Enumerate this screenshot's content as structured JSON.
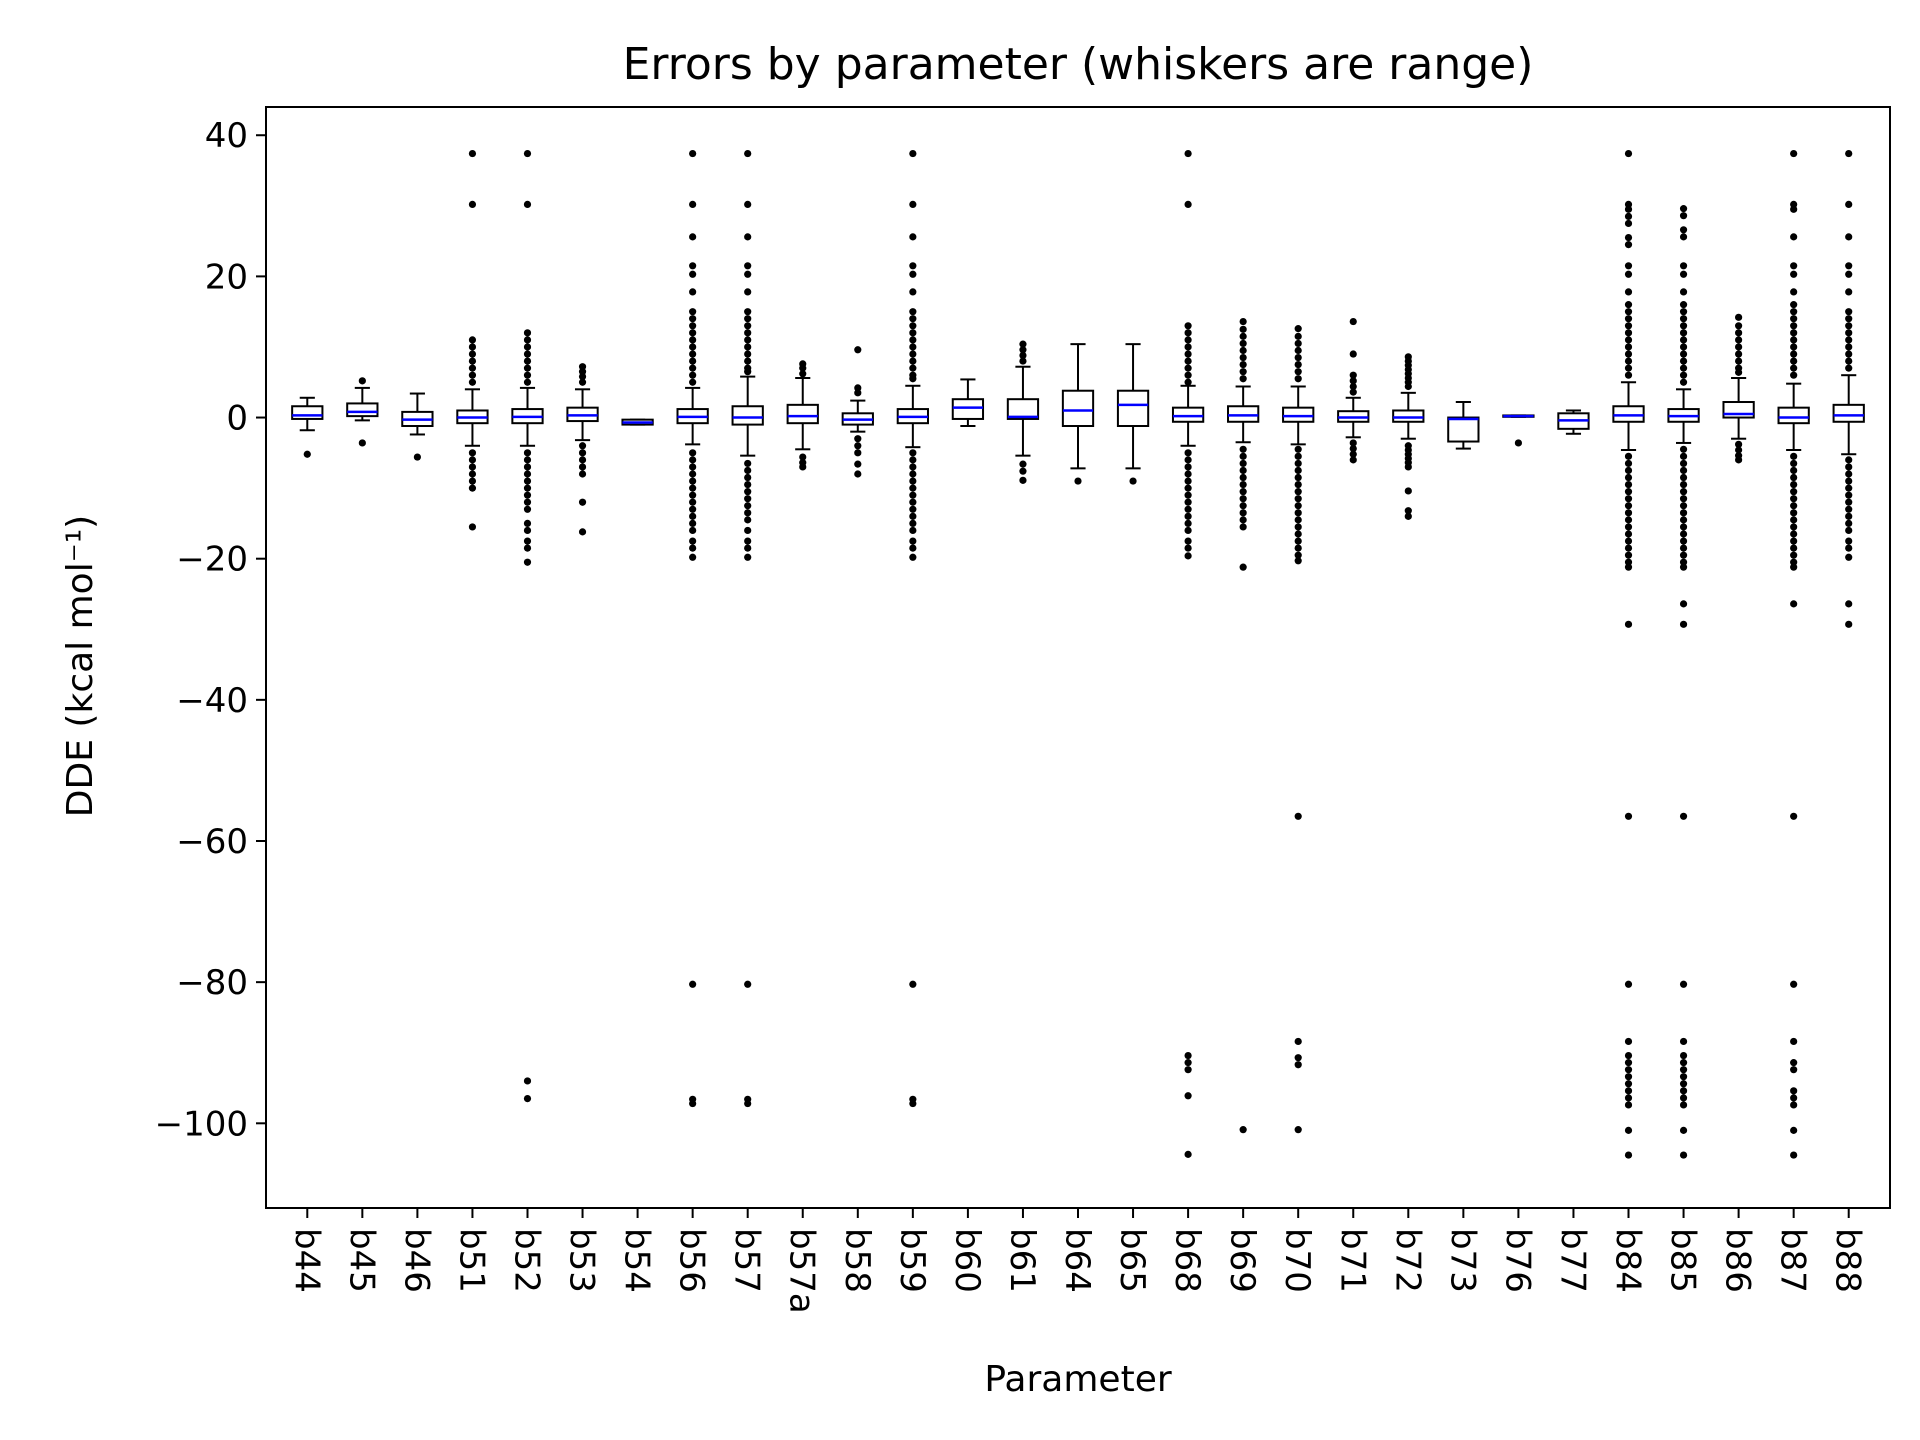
{
  "chart_data": {
    "type": "box",
    "title": "Errors by parameter (whiskers are range)",
    "xlabel": "Parameter",
    "ylabel": "DDE (kcal mol⁻¹)",
    "ylim": [
      -112,
      44
    ],
    "yticks": [
      40,
      20,
      0,
      -20,
      -40,
      -60,
      -80,
      -100
    ],
    "ytick_labels": [
      "40",
      "20",
      "0",
      "−20",
      "−40",
      "−60",
      "−80",
      "−100"
    ],
    "grid": false,
    "legend": "none",
    "colors": {
      "box": "#000000",
      "median": "#0000ff",
      "outlier": "#000000"
    },
    "categories": [
      "b44",
      "b45",
      "b46",
      "b51",
      "b52",
      "b53",
      "b54",
      "b56",
      "b57",
      "b57a",
      "b58",
      "b59",
      "b60",
      "b61",
      "b64",
      "b65",
      "b68",
      "b69",
      "b70",
      "b71",
      "b72",
      "b73",
      "b76",
      "b77",
      "b84",
      "b85",
      "b86",
      "b87",
      "b88"
    ],
    "boxes": [
      {
        "q1": -0.2,
        "median": 0.3,
        "q3": 1.6,
        "wlo": -1.8,
        "whi": 2.8,
        "outliers": [
          -5.2
        ]
      },
      {
        "q1": 0.2,
        "median": 0.8,
        "q3": 2.0,
        "wlo": -0.4,
        "whi": 4.2,
        "outliers": [
          5.2,
          -3.6
        ]
      },
      {
        "q1": -1.2,
        "median": -0.3,
        "q3": 0.8,
        "wlo": -2.4,
        "whi": 3.4,
        "outliers": [
          -5.6
        ]
      },
      {
        "q1": -0.8,
        "median": 0.0,
        "q3": 1.0,
        "wlo": -4.0,
        "whi": 4.0,
        "outliers": [
          37.4,
          30.2,
          11,
          10,
          9,
          8,
          7,
          6,
          5,
          -5,
          -6,
          -7,
          -8,
          -9,
          -10,
          -15.5
        ]
      },
      {
        "q1": -0.8,
        "median": 0.1,
        "q3": 1.2,
        "wlo": -4.0,
        "whi": 4.2,
        "outliers": [
          37.4,
          30.2,
          12,
          11,
          10,
          9,
          8,
          7,
          6,
          5,
          -5,
          -6,
          -7,
          -8,
          -9,
          -10,
          -11,
          -12,
          -13,
          -15,
          -16,
          -17.5,
          -18.5,
          -20.5,
          -94,
          -96.5
        ]
      },
      {
        "q1": -0.5,
        "median": 0.3,
        "q3": 1.4,
        "wlo": -3.2,
        "whi": 4.0,
        "outliers": [
          7.2,
          6.5,
          5.8,
          5,
          -4,
          -5,
          -6,
          -7,
          -8,
          -12,
          -16.2
        ]
      },
      {
        "q1": -1.0,
        "median": -0.7,
        "q3": -0.3,
        "wlo": -1.0,
        "whi": -0.3,
        "outliers": []
      },
      {
        "q1": -0.8,
        "median": 0.1,
        "q3": 1.2,
        "wlo": -3.8,
        "whi": 4.2,
        "outliers": [
          37.4,
          30.2,
          25.6,
          21.5,
          20.3,
          17.8,
          15,
          14,
          13,
          12,
          11,
          10,
          9,
          8,
          7,
          6,
          5,
          -5,
          -6,
          -7,
          -8,
          -9,
          -10,
          -11,
          -12,
          -13,
          -14,
          -15,
          -16,
          -17.5,
          -18.5,
          -19.8,
          -80.3,
          -96.6,
          -97.2
        ]
      },
      {
        "q1": -1.0,
        "median": 0.0,
        "q3": 1.6,
        "wlo": -5.4,
        "whi": 5.8,
        "outliers": [
          37.4,
          30.2,
          25.6,
          21.5,
          20.3,
          17.8,
          15,
          14,
          13,
          12,
          11,
          10,
          9,
          8,
          7,
          6.5,
          -6.5,
          -7.5,
          -8.5,
          -9.5,
          -10.5,
          -11.5,
          -12.5,
          -13.5,
          -14.5,
          -16,
          -17.5,
          -18.5,
          -19.8,
          -80.3,
          -96.6,
          -97.2
        ]
      },
      {
        "q1": -0.8,
        "median": 0.2,
        "q3": 1.8,
        "wlo": -4.5,
        "whi": 5.6,
        "outliers": [
          7.6,
          7.0,
          6.2,
          -5.6,
          -6.4,
          -7.0
        ]
      },
      {
        "q1": -1.0,
        "median": -0.3,
        "q3": 0.6,
        "wlo": -2.0,
        "whi": 2.4,
        "outliers": [
          9.6,
          4.2,
          3.5,
          -3.0,
          -4.0,
          -5.0,
          -6.6,
          -8.0
        ]
      },
      {
        "q1": -0.8,
        "median": 0.1,
        "q3": 1.2,
        "wlo": -4.2,
        "whi": 4.5,
        "outliers": [
          37.4,
          30.2,
          25.6,
          21.5,
          20.3,
          17.8,
          15,
          14,
          13,
          12,
          11,
          10,
          9,
          8,
          7,
          6,
          5.5,
          -5,
          -6,
          -7,
          -8,
          -9,
          -10,
          -11,
          -12,
          -13,
          -14,
          -15,
          -16,
          -17.5,
          -18.5,
          -19.8,
          -80.3,
          -96.6,
          -97.2
        ]
      },
      {
        "q1": -0.2,
        "median": 1.4,
        "q3": 2.6,
        "wlo": -1.2,
        "whi": 5.4,
        "outliers": []
      },
      {
        "q1": -0.2,
        "median": 0.1,
        "q3": 2.6,
        "wlo": -5.4,
        "whi": 7.2,
        "outliers": [
          10.4,
          9.6,
          8.8,
          8.0,
          -6.6,
          -7.6,
          -8.9
        ]
      },
      {
        "q1": -1.2,
        "median": 1.0,
        "q3": 3.8,
        "wlo": -7.2,
        "whi": 10.4,
        "outliers": [
          -9.0
        ]
      },
      {
        "q1": -1.2,
        "median": 1.8,
        "q3": 3.8,
        "wlo": -7.2,
        "whi": 10.4,
        "outliers": [
          -9.0
        ]
      },
      {
        "q1": -0.6,
        "median": 0.2,
        "q3": 1.4,
        "wlo": -4.0,
        "whi": 4.5,
        "outliers": [
          37.4,
          30.2,
          13,
          12,
          11,
          10,
          9,
          8,
          7,
          6,
          5,
          -5,
          -6,
          -7,
          -8,
          -9,
          -10,
          -11,
          -12,
          -13,
          -14,
          -15,
          -16,
          -17.5,
          -18.5,
          -19.6,
          -90.4,
          -91.4,
          -92.4,
          -96.1,
          -104.4
        ]
      },
      {
        "q1": -0.6,
        "median": 0.3,
        "q3": 1.6,
        "wlo": -3.5,
        "whi": 4.4,
        "outliers": [
          13.6,
          12.5,
          11.5,
          10.5,
          9.5,
          8.5,
          7.5,
          6.5,
          5.5,
          -4.5,
          -5.5,
          -6.5,
          -7.5,
          -8.5,
          -9.5,
          -10.5,
          -11.5,
          -12.5,
          -13.5,
          -14.5,
          -15.5,
          -21.2,
          -100.9
        ]
      },
      {
        "q1": -0.6,
        "median": 0.2,
        "q3": 1.4,
        "wlo": -3.8,
        "whi": 4.4,
        "outliers": [
          12.6,
          11.5,
          10.5,
          9.5,
          8.5,
          7.5,
          6.5,
          5.5,
          -4.5,
          -5.5,
          -6.5,
          -7.5,
          -8.5,
          -9.5,
          -10.5,
          -11.5,
          -12.5,
          -13.5,
          -14.5,
          -15.5,
          -16.5,
          -17.5,
          -18.5,
          -19.5,
          -20.3,
          -56.5,
          -88.4,
          -90.7,
          -91.7,
          -100.9
        ]
      },
      {
        "q1": -0.6,
        "median": 0.0,
        "q3": 0.9,
        "wlo": -2.8,
        "whi": 2.8,
        "outliers": [
          13.6,
          9.0,
          6.0,
          5.2,
          4.4,
          3.6,
          -3.6,
          -4.4,
          -5.2,
          -6.0
        ]
      },
      {
        "q1": -0.6,
        "median": 0.0,
        "q3": 1.0,
        "wlo": -3.0,
        "whi": 3.5,
        "outliers": [
          8.6,
          8.0,
          7.4,
          6.8,
          6.2,
          5.6,
          5.0,
          4.4,
          -4.0,
          -4.6,
          -5.2,
          -5.8,
          -6.4,
          -7.0,
          -10.4,
          -13.2,
          -14.0
        ]
      },
      {
        "q1": -3.4,
        "median": -0.2,
        "q3": 0.0,
        "wlo": -4.4,
        "whi": 2.2,
        "outliers": []
      },
      {
        "q1": 0.1,
        "median": 0.2,
        "q3": 0.3,
        "wlo": 0.1,
        "whi": 0.3,
        "outliers": [
          -3.6
        ]
      },
      {
        "q1": -1.6,
        "median": -0.4,
        "q3": 0.6,
        "wlo": -2.3,
        "whi": 1.0,
        "outliers": []
      },
      {
        "q1": -0.6,
        "median": 0.3,
        "q3": 1.6,
        "wlo": -4.6,
        "whi": 5.0,
        "outliers": [
          37.4,
          30.2,
          29.5,
          28.5,
          27.5,
          25.5,
          24.5,
          21.5,
          20.3,
          17.8,
          16,
          15,
          14,
          13,
          12,
          11,
          10,
          9,
          8,
          7,
          6,
          -5.5,
          -6.5,
          -7.5,
          -8.5,
          -9.5,
          -10.5,
          -11.5,
          -12.5,
          -13.5,
          -14.5,
          -15.5,
          -16.5,
          -17.5,
          -18.5,
          -19.5,
          -20.5,
          -21.2,
          -29.3,
          -56.5,
          -80.3,
          -88.4,
          -90.4,
          -91.4,
          -92.4,
          -93.4,
          -94.4,
          -95.4,
          -96.4,
          -97.4,
          -101,
          -104.5
        ]
      },
      {
        "q1": -0.6,
        "median": 0.2,
        "q3": 1.2,
        "wlo": -3.6,
        "whi": 4.0,
        "outliers": [
          29.6,
          28.6,
          26.6,
          25.6,
          21.5,
          20.3,
          17.8,
          16,
          15,
          14,
          13,
          12,
          11,
          10,
          9,
          8,
          7,
          6,
          5,
          -4.5,
          -5.5,
          -6.5,
          -7.5,
          -8.5,
          -9.5,
          -10.5,
          -11.5,
          -12.5,
          -13.5,
          -14.5,
          -15.5,
          -16.5,
          -17.5,
          -18.5,
          -19.5,
          -20.5,
          -21.2,
          -26.4,
          -29.3,
          -56.5,
          -80.3,
          -88.4,
          -90.4,
          -91.4,
          -92.4,
          -93.4,
          -94.4,
          -95.4,
          -96.4,
          -97.4,
          -101,
          -104.5
        ]
      },
      {
        "q1": 0.0,
        "median": 0.5,
        "q3": 2.2,
        "wlo": -3.0,
        "whi": 5.6,
        "outliers": [
          14.2,
          13,
          12,
          11,
          10,
          9,
          8,
          7,
          6.4,
          -3.8,
          -4.6,
          -5.4,
          -6.0
        ]
      },
      {
        "q1": -0.8,
        "median": 0.0,
        "q3": 1.4,
        "wlo": -4.6,
        "whi": 4.8,
        "outliers": [
          37.4,
          30.2,
          29.5,
          25.6,
          21.5,
          20.3,
          17.8,
          16,
          15,
          14,
          13,
          12,
          11,
          10,
          9,
          8,
          7,
          6,
          -5.5,
          -6.5,
          -7.5,
          -8.5,
          -9.5,
          -10.5,
          -11.5,
          -12.5,
          -13.5,
          -14.5,
          -15.5,
          -16.5,
          -17.5,
          -18.5,
          -19.5,
          -20.5,
          -21.2,
          -26.4,
          -56.5,
          -80.3,
          -88.4,
          -91.4,
          -92.4,
          -95.4,
          -96.4,
          -97.4,
          -101,
          -104.5
        ]
      },
      {
        "q1": -0.6,
        "median": 0.3,
        "q3": 1.8,
        "wlo": -5.2,
        "whi": 6.0,
        "outliers": [
          37.4,
          30.2,
          25.6,
          21.5,
          20.3,
          17.8,
          15,
          14,
          13,
          12,
          11,
          10,
          9,
          8,
          7,
          -6,
          -7,
          -8,
          -9,
          -10,
          -11,
          -12,
          -13,
          -14,
          -15,
          -16,
          -17.5,
          -18.5,
          -19.8,
          -26.4,
          -29.3
        ]
      }
    ]
  }
}
